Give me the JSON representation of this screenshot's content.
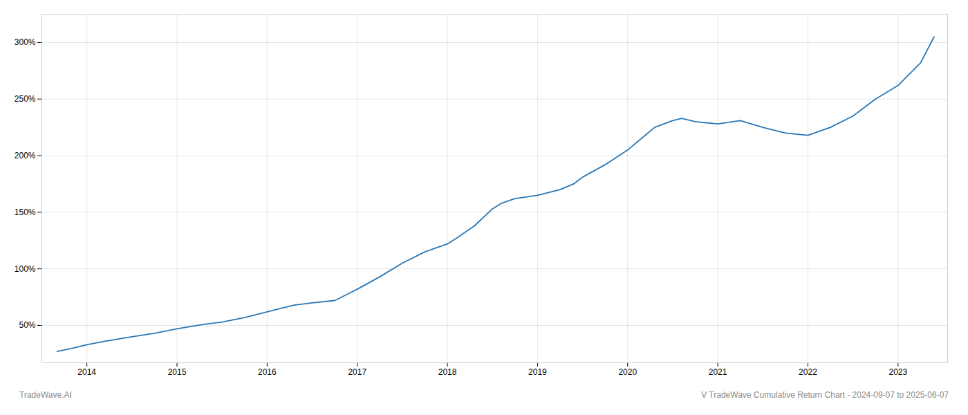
{
  "chart_data": {
    "type": "line",
    "annotations": [
      "TradeWave.AI",
      "V TradeWave Cumulative Return Chart - 2024-09-07 to 2025-06-07"
    ],
    "color": "#2878b8",
    "x": [
      2013.67,
      2013.85,
      2014.0,
      2014.2,
      2014.5,
      2014.75,
      2015.0,
      2015.3,
      2015.5,
      2015.75,
      2016.0,
      2016.15,
      2016.3,
      2016.5,
      2016.75,
      2017.0,
      2017.25,
      2017.5,
      2017.75,
      2018.0,
      2018.1,
      2018.3,
      2018.5,
      2018.6,
      2018.75,
      2019.0,
      2019.25,
      2019.4,
      2019.5,
      2019.75,
      2020.0,
      2020.15,
      2020.3,
      2020.5,
      2020.6,
      2020.75,
      2021.0,
      2021.25,
      2021.5,
      2021.75,
      2022.0,
      2022.25,
      2022.5,
      2022.75,
      2023.0,
      2023.25,
      2023.4
    ],
    "values": [
      27,
      30,
      33,
      36,
      40,
      43,
      47,
      51,
      53,
      57,
      62,
      65,
      68,
      70,
      72,
      82,
      93,
      105,
      115,
      122,
      127,
      138,
      153,
      158,
      162,
      165,
      170,
      175,
      181,
      192,
      205,
      215,
      225,
      231,
      233,
      230,
      228,
      231,
      225,
      220,
      218,
      225,
      235,
      250,
      262,
      282,
      305
    ],
    "xlim": [
      2013.5,
      2023.55
    ],
    "ylim": [
      17,
      325
    ],
    "xticks": [
      2014,
      2015,
      2016,
      2017,
      2018,
      2019,
      2020,
      2021,
      2022,
      2023
    ],
    "yticks": [
      {
        "value": 50,
        "label": "50%"
      },
      {
        "value": 100,
        "label": "100%"
      },
      {
        "value": 150,
        "label": "150%"
      },
      {
        "value": 200,
        "label": "200%"
      },
      {
        "value": 250,
        "label": "250%"
      },
      {
        "value": 300,
        "label": "300%"
      }
    ],
    "grid": true
  }
}
